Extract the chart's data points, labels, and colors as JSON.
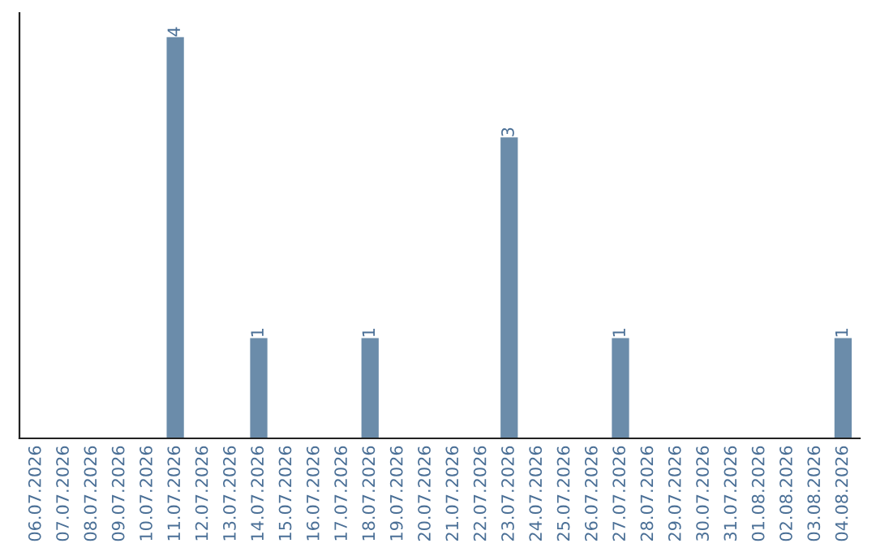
{
  "chart_data": {
    "type": "bar",
    "categories": [
      "06.07.2026",
      "07.07.2026",
      "08.07.2026",
      "09.07.2026",
      "10.07.2026",
      "11.07.2026",
      "12.07.2026",
      "13.07.2026",
      "14.07.2026",
      "15.07.2026",
      "16.07.2026",
      "17.07.2026",
      "18.07.2026",
      "19.07.2026",
      "20.07.2026",
      "21.07.2026",
      "22.07.2026",
      "23.07.2026",
      "24.07.2026",
      "25.07.2026",
      "26.07.2026",
      "27.07.2026",
      "28.07.2026",
      "29.07.2026",
      "30.07.2026",
      "31.07.2026",
      "01.08.2026",
      "02.08.2026",
      "03.08.2026",
      "04.08.2026"
    ],
    "values": [
      0,
      0,
      0,
      0,
      0,
      4,
      0,
      0,
      1,
      0,
      0,
      0,
      1,
      0,
      0,
      0,
      0,
      3,
      0,
      0,
      0,
      1,
      0,
      0,
      0,
      0,
      0,
      0,
      0,
      1
    ],
    "value_labels": [
      null,
      null,
      null,
      null,
      null,
      "4",
      null,
      null,
      "1",
      null,
      null,
      null,
      "1",
      null,
      null,
      null,
      null,
      "3",
      null,
      null,
      null,
      "1",
      null,
      null,
      null,
      null,
      null,
      null,
      null,
      "1"
    ],
    "color": "#6b8caa",
    "grid": false,
    "legend": false
  }
}
